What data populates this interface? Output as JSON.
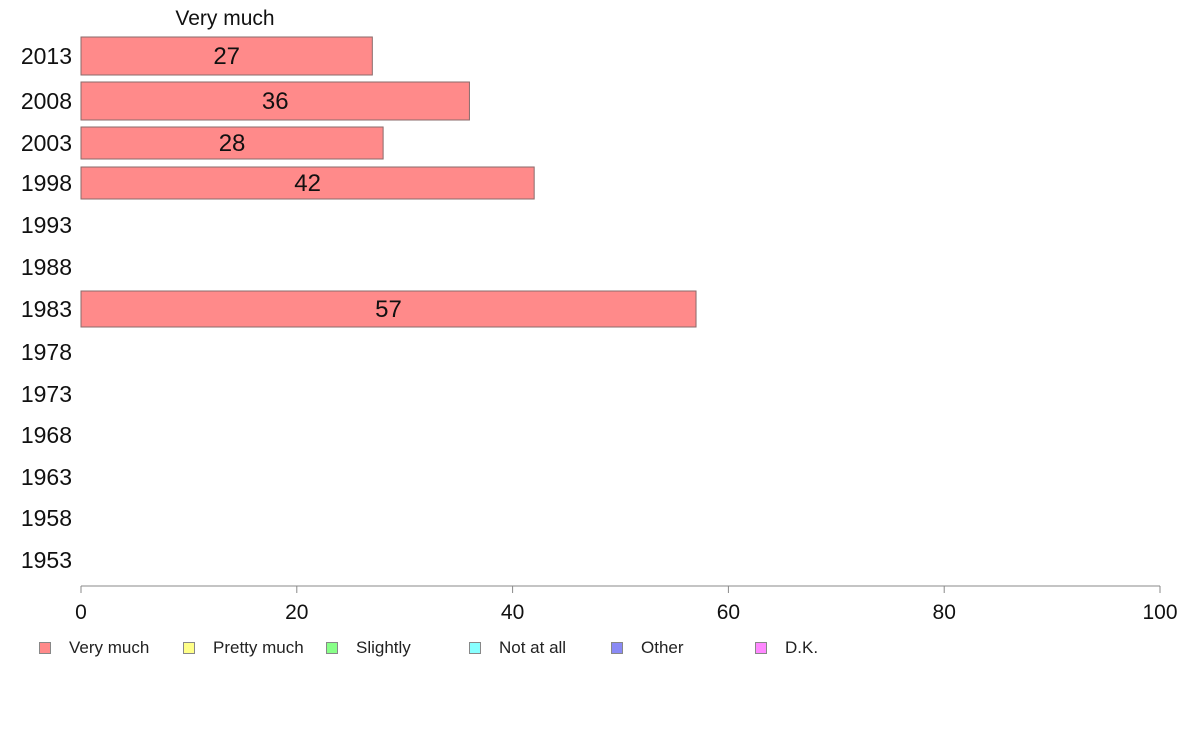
{
  "chart_data": {
    "type": "bar",
    "orientation": "horizontal",
    "title": "Very much",
    "categories": [
      "2013",
      "2008",
      "2003",
      "1998",
      "1993",
      "1988",
      "1983",
      "1978",
      "1973",
      "1968",
      "1963",
      "1958",
      "1953"
    ],
    "series": [
      {
        "name": "Very much",
        "values": [
          27,
          36,
          28,
          42,
          null,
          null,
          57,
          null,
          null,
          null,
          null,
          null,
          null
        ]
      }
    ],
    "data_labels": [
      "27",
      "36",
      "28",
      "42",
      "",
      "",
      "57",
      "",
      "",
      "",
      "",
      "",
      ""
    ],
    "xlim": [
      0,
      100
    ],
    "xticks": [
      "0",
      "20",
      "40",
      "60",
      "80",
      "100"
    ],
    "grid": false,
    "legend_position": "bottom",
    "legend": [
      {
        "label": "Very much",
        "color": "#ff8a8a"
      },
      {
        "label": "Pretty much",
        "color": "#ffff88"
      },
      {
        "label": "Slightly",
        "color": "#88ff88"
      },
      {
        "label": "Not at all",
        "color": "#88ffff"
      },
      {
        "label": "Other",
        "color": "#8a8af5"
      },
      {
        "label": "D.K.",
        "color": "#ff88ff"
      }
    ],
    "bar_color": "#ff8a8a"
  }
}
